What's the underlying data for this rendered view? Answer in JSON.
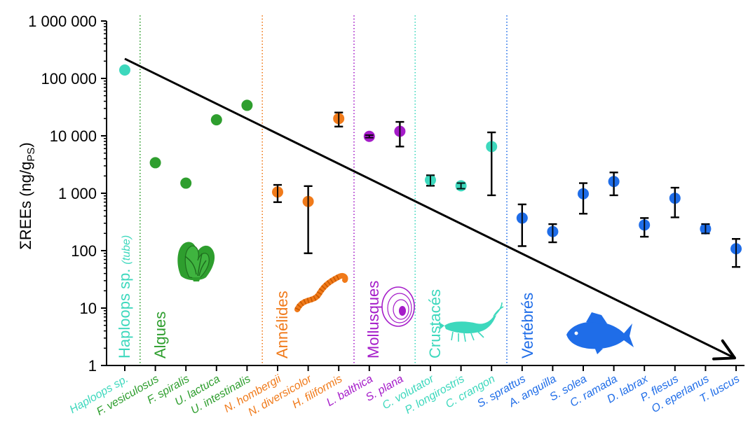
{
  "chart_data": {
    "type": "scatter",
    "yscale": "log",
    "ylim": [
      1,
      1000000
    ],
    "yticks": [
      {
        "value": 1,
        "label": "1"
      },
      {
        "value": 10,
        "label": "10"
      },
      {
        "value": 100,
        "label": "100"
      },
      {
        "value": 1000,
        "label": "1 000"
      },
      {
        "value": 10000,
        "label": "10 000"
      },
      {
        "value": 100000,
        "label": "100 000"
      },
      {
        "value": 1000000,
        "label": "1 000 000"
      }
    ],
    "ylabel": {
      "main": "ΣREEs (ng/g",
      "sub": "PS",
      "close": ")"
    },
    "colors": {
      "haploops": "#3dd8bd",
      "algues": "#2e9e2e",
      "annelides": "#f07a1a",
      "mollusques": "#a51cc9",
      "crustaces": "#3dd8bd",
      "vertebres": "#1f6de8"
    },
    "points": [
      {
        "label": "Haploops sp.",
        "group": "haploops",
        "y": 140000
      },
      {
        "label": "F. vesiculosus",
        "group": "algues",
        "y": 3400
      },
      {
        "label": "F. spiralis",
        "group": "algues",
        "y": 1500
      },
      {
        "label": "U. lactuca",
        "group": "algues",
        "y": 19000
      },
      {
        "label": "U. intestinalis",
        "group": "algues",
        "y": 34000
      },
      {
        "label": "N. hombergii",
        "group": "annelides",
        "y": 1050,
        "err": [
          700,
          1400
        ]
      },
      {
        "label": "N. diversicolor",
        "group": "annelides",
        "y": 720,
        "err": [
          90,
          1330
        ]
      },
      {
        "label": "H. filiformis",
        "group": "annelides",
        "y": 20000,
        "err": [
          14500,
          25500
        ]
      },
      {
        "label": "L. balthica",
        "group": "mollusques",
        "y": 9800,
        "err": [
          9300,
          10300
        ]
      },
      {
        "label": "S. plana",
        "group": "mollusques",
        "y": 12000,
        "err": [
          6500,
          17500
        ]
      },
      {
        "label": "C. volutator",
        "group": "crustaces",
        "y": 1700,
        "err": [
          1350,
          2050
        ]
      },
      {
        "label": "P. longirostris",
        "group": "crustaces",
        "y": 1350,
        "err": [
          1200,
          1500
        ]
      },
      {
        "label": "C. crangon",
        "group": "crustaces",
        "y": 6500,
        "err": [
          920,
          11500
        ]
      },
      {
        "label": "S. sprattus",
        "group": "vertebres",
        "y": 370,
        "err": [
          120,
          640
        ]
      },
      {
        "label": "A. anguilla",
        "group": "vertebres",
        "y": 215,
        "err": [
          140,
          290
        ]
      },
      {
        "label": "S. solea",
        "group": "vertebres",
        "y": 980,
        "err": [
          440,
          1500
        ]
      },
      {
        "label": "C. ramada",
        "group": "vertebres",
        "y": 1600,
        "err": [
          920,
          2300
        ]
      },
      {
        "label": "D. labrax",
        "group": "vertebres",
        "y": 280,
        "err": [
          175,
          370
        ]
      },
      {
        "label": "P. flesus",
        "group": "vertebres",
        "y": 820,
        "err": [
          380,
          1250
        ]
      },
      {
        "label": "O. eperlanus",
        "group": "vertebres",
        "y": 240,
        "err": [
          200,
          290
        ]
      },
      {
        "label": "T. luscus",
        "group": "vertebres",
        "y": 108,
        "err": [
          52,
          160
        ]
      }
    ],
    "groups": [
      {
        "key": "haploops",
        "label": "Haploops sp.",
        "note": "(tube)"
      },
      {
        "key": "algues",
        "label": "Algues"
      },
      {
        "key": "annelides",
        "label": "Annélides"
      },
      {
        "key": "mollusques",
        "label": "Mollusques"
      },
      {
        "key": "crustaces",
        "label": "Crustacés"
      },
      {
        "key": "vertebres",
        "label": "Vertébrés"
      }
    ],
    "separators_after_index": [
      0,
      4,
      7,
      9,
      12
    ],
    "trend_arrow": {
      "from": {
        "x_index": 0,
        "y": 220000
      },
      "to": {
        "x_index": 20,
        "y": 1.35
      }
    },
    "icons": [
      {
        "name": "algae-icon",
        "group": "algues"
      },
      {
        "name": "worm-icon",
        "group": "annelides"
      },
      {
        "name": "clam-shell-icon",
        "group": "mollusques"
      },
      {
        "name": "shrimp-icon",
        "group": "crustaces"
      },
      {
        "name": "fish-icon",
        "group": "vertebres"
      }
    ]
  }
}
